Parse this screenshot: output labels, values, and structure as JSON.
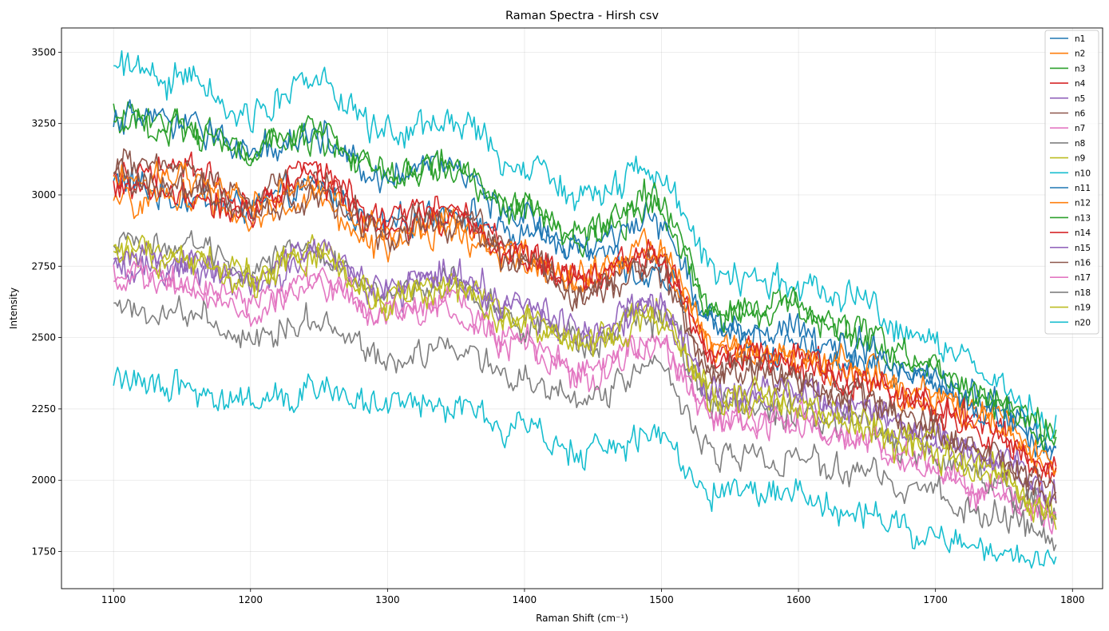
{
  "chart_data": {
    "type": "line",
    "title": "Raman Spectra - Hirsh csv",
    "xlabel": "Raman Shift (cm⁻¹)",
    "ylabel": "Intensity",
    "xlim": [
      1062,
      1822
    ],
    "ylim": [
      1620,
      3585
    ],
    "xticks": [
      1100,
      1200,
      1300,
      1400,
      1500,
      1600,
      1700,
      1800
    ],
    "yticks": [
      1750,
      2000,
      2250,
      2500,
      2750,
      3000,
      3250,
      3500
    ],
    "grid": true,
    "legend_position": "top-right",
    "x_range": [
      1100,
      1788
    ],
    "series": [
      {
        "name": "n1",
        "color": "#1f77b4",
        "values": [
          3050,
          2990,
          2960,
          3020,
          2890,
          2950,
          2860,
          2840,
          2700,
          2560,
          2450,
          2420,
          2350,
          2280,
          2100
        ]
      },
      {
        "name": "n2",
        "color": "#ff7f0e",
        "values": [
          2960,
          3000,
          2930,
          2970,
          2820,
          2860,
          2780,
          2680,
          2830,
          2460,
          2430,
          2400,
          2310,
          2220,
          2050
        ]
      },
      {
        "name": "n3",
        "color": "#2ca02c",
        "values": [
          3280,
          3250,
          3150,
          3200,
          3060,
          3090,
          2950,
          2860,
          2950,
          2580,
          2620,
          2500,
          2400,
          2280,
          2150
        ]
      },
      {
        "name": "n4",
        "color": "#d62728",
        "values": [
          3060,
          3120,
          2960,
          3130,
          2920,
          2960,
          2800,
          2700,
          2790,
          2440,
          2450,
          2370,
          2290,
          2200,
          2010
        ]
      },
      {
        "name": "n5",
        "color": "#9467bd",
        "values": [
          2730,
          2740,
          2690,
          2780,
          2650,
          2700,
          2580,
          2500,
          2620,
          2300,
          2290,
          2230,
          2140,
          2070,
          1930
        ]
      },
      {
        "name": "n6",
        "color": "#8c564b",
        "values": [
          3100,
          3080,
          3010,
          3060,
          2880,
          2940,
          2800,
          2660,
          2760,
          2390,
          2370,
          2300,
          2200,
          2080,
          1950
        ]
      },
      {
        "name": "n7",
        "color": "#e377c2",
        "values": [
          2700,
          2680,
          2600,
          2690,
          2580,
          2600,
          2470,
          2360,
          2470,
          2200,
          2200,
          2140,
          2050,
          1960,
          1860
        ]
      },
      {
        "name": "n8",
        "color": "#7f7f7f",
        "values": [
          2860,
          2820,
          2760,
          2800,
          2640,
          2700,
          2560,
          2480,
          2580,
          2270,
          2250,
          2180,
          2100,
          2000,
          1880
        ]
      },
      {
        "name": "n9",
        "color": "#bcbd22",
        "values": [
          2820,
          2790,
          2730,
          2820,
          2660,
          2690,
          2580,
          2500,
          2600,
          2300,
          2290,
          2210,
          2140,
          2040,
          1900
        ]
      },
      {
        "name": "n10",
        "color": "#17becf",
        "values": [
          3450,
          3400,
          3280,
          3400,
          3220,
          3260,
          3120,
          2980,
          3080,
          2720,
          2700,
          2630,
          2520,
          2350,
          2200
        ]
      },
      {
        "name": "n11",
        "color": "#1f77b4",
        "values": [
          3270,
          3250,
          3150,
          3220,
          3060,
          3100,
          2930,
          2810,
          2920,
          2520,
          2530,
          2460,
          2380,
          2260,
          2120
        ]
      },
      {
        "name": "n12",
        "color": "#ff7f0e",
        "values": [
          3080,
          3060,
          2990,
          3030,
          2870,
          2920,
          2800,
          2710,
          2800,
          2470,
          2450,
          2380,
          2300,
          2190,
          2060
        ]
      },
      {
        "name": "n13",
        "color": "#2ca02c",
        "values": [
          3250,
          3230,
          3160,
          3230,
          3070,
          3110,
          2960,
          2850,
          2990,
          2600,
          2610,
          2520,
          2430,
          2300,
          2160
        ]
      },
      {
        "name": "n14",
        "color": "#d62728",
        "values": [
          3020,
          3000,
          2930,
          3050,
          2880,
          2930,
          2800,
          2700,
          2780,
          2430,
          2420,
          2360,
          2270,
          2160,
          2040
        ]
      },
      {
        "name": "n15",
        "color": "#9467bd",
        "values": [
          2780,
          2770,
          2700,
          2820,
          2680,
          2730,
          2610,
          2530,
          2630,
          2310,
          2310,
          2240,
          2160,
          2080,
          1950
        ]
      },
      {
        "name": "n16",
        "color": "#8c564b",
        "values": [
          3060,
          3020,
          2950,
          3000,
          2850,
          2900,
          2760,
          2650,
          2740,
          2380,
          2360,
          2290,
          2200,
          2090,
          1960
        ]
      },
      {
        "name": "n17",
        "color": "#e377c2",
        "values": [
          2720,
          2700,
          2620,
          2710,
          2590,
          2620,
          2480,
          2380,
          2480,
          2210,
          2220,
          2150,
          2060,
          1970,
          1870
        ]
      },
      {
        "name": "n18",
        "color": "#7f7f7f",
        "values": [
          2620,
          2580,
          2500,
          2560,
          2420,
          2470,
          2360,
          2290,
          2380,
          2090,
          2080,
          2020,
          1960,
          1880,
          1780
        ]
      },
      {
        "name": "n19",
        "color": "#bcbd22",
        "values": [
          2800,
          2770,
          2700,
          2780,
          2630,
          2670,
          2560,
          2470,
          2570,
          2270,
          2260,
          2190,
          2110,
          2020,
          1880
        ]
      },
      {
        "name": "n20",
        "color": "#17becf",
        "values": [
          2360,
          2330,
          2260,
          2330,
          2250,
          2270,
          2180,
          2100,
          2150,
          1950,
          1950,
          1890,
          1810,
          1760,
          1700
        ]
      }
    ]
  }
}
